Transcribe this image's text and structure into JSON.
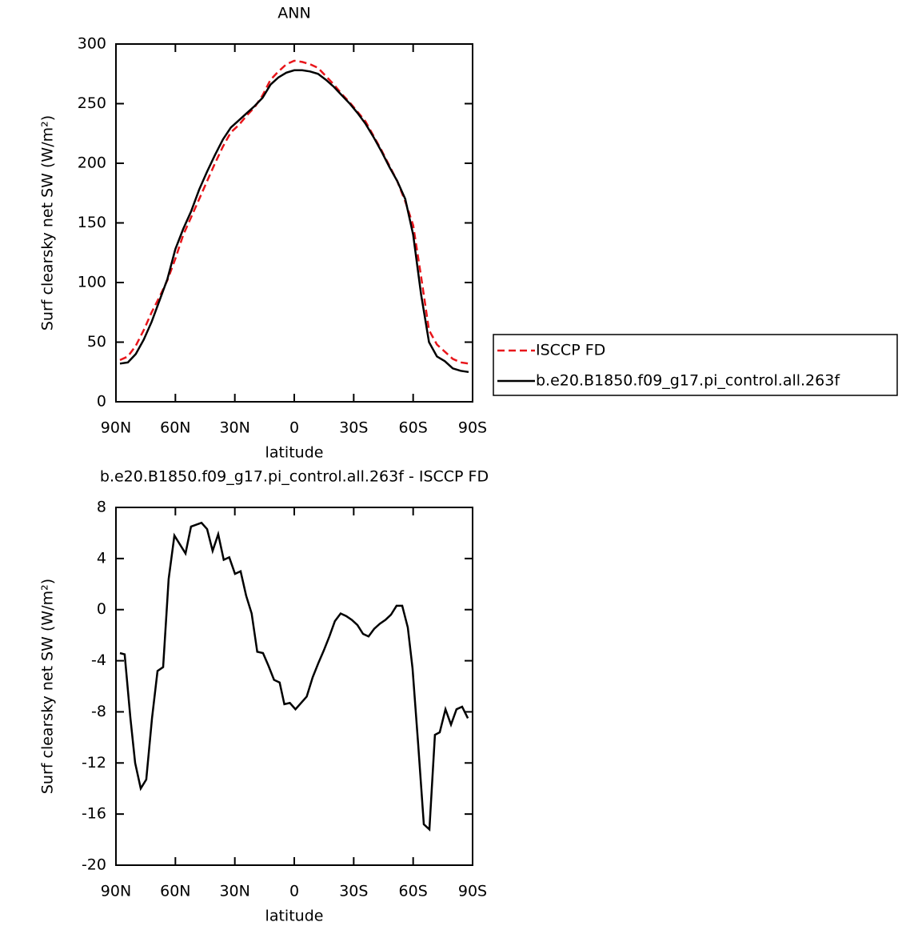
{
  "chart_data": [
    {
      "type": "line",
      "title": "ANN",
      "xlabel": "latitude",
      "ylabel": "Surf clearsky net SW (W/m²)",
      "xlim": [
        90,
        -90
      ],
      "xticks": [
        {
          "value": 90,
          "label": "90N"
        },
        {
          "value": 60,
          "label": "60N"
        },
        {
          "value": 30,
          "label": "30N"
        },
        0,
        {
          "value": -30,
          "label": "30S"
        },
        {
          "value": -60,
          "label": "60S"
        },
        {
          "value": -90,
          "label": "90S"
        }
      ],
      "ylim": [
        0,
        300
      ],
      "yticks": [
        0,
        50,
        100,
        150,
        200,
        250,
        300
      ],
      "legend": "right",
      "x": [
        88,
        84,
        80,
        76,
        72,
        68,
        64,
        60,
        56,
        52,
        48,
        44,
        40,
        36,
        32,
        28,
        24,
        20,
        16,
        12,
        8,
        4,
        0,
        -4,
        -8,
        -12,
        -16,
        -20,
        -24,
        -28,
        -32,
        -36,
        -40,
        -44,
        -48,
        -52,
        -56,
        -60,
        -64,
        -68,
        -72,
        -76,
        -80,
        -84,
        -88
      ],
      "series": [
        {
          "name": "ISCCP FD",
          "color": "#e8161b",
          "line_style": "dashed",
          "values": [
            35,
            38,
            47,
            60,
            75,
            88,
            102,
            120,
            140,
            155,
            170,
            185,
            200,
            214,
            226,
            232,
            240,
            247,
            257,
            270,
            277,
            283,
            286,
            285,
            283,
            280,
            273,
            266,
            258,
            251,
            243,
            235,
            223,
            211,
            198,
            185,
            168,
            148,
            105,
            60,
            48,
            42,
            36,
            33,
            32
          ]
        },
        {
          "name": "b.e20.B1850.f09_g17.pi_control.all.263f",
          "color": "#000000",
          "line_style": "solid",
          "values": [
            32,
            33,
            40,
            52,
            67,
            85,
            103,
            128,
            145,
            160,
            178,
            193,
            207,
            220,
            230,
            236,
            242,
            248,
            255,
            266,
            272,
            276,
            278,
            278,
            277,
            275,
            270,
            264,
            257,
            250,
            242,
            233,
            222,
            210,
            197,
            185,
            170,
            140,
            90,
            50,
            38,
            34,
            28,
            26,
            25
          ]
        }
      ]
    },
    {
      "type": "line",
      "title": "b.e20.B1850.f09_g17.pi_control.all.263f - ISCCP FD",
      "xlabel": "latitude",
      "ylabel": "Surf clearsky net SW (W/m²)",
      "xlim": [
        90,
        -90
      ],
      "xticks": [
        {
          "value": 90,
          "label": "90N"
        },
        {
          "value": 60,
          "label": "60N"
        },
        {
          "value": 30,
          "label": "30N"
        },
        0,
        {
          "value": -30,
          "label": "30S"
        },
        {
          "value": -60,
          "label": "60S"
        },
        {
          "value": -90,
          "label": "90S"
        }
      ],
      "ylim": [
        -20,
        8
      ],
      "yticks": [
        -20,
        -16,
        -12,
        -8,
        -4,
        0,
        4,
        8
      ],
      "x": [
        88.0,
        85.6,
        82.7,
        80.3,
        77.5,
        74.7,
        71.8,
        69.0,
        66.2,
        63.4,
        60.5,
        54.9,
        52.1,
        46.8,
        44.0,
        41.2,
        38.4,
        35.6,
        32.8,
        29.9,
        27.1,
        24.3,
        21.5,
        18.7,
        15.8,
        13.0,
        10.2,
        7.4,
        5.0,
        2.2,
        -0.6,
        -6.3,
        -9.3,
        -12.1,
        -14.9,
        -17.7,
        -20.5,
        -23.4,
        -26.2,
        -29.0,
        -31.9,
        -34.7,
        -37.5,
        -40.3,
        -43.2,
        -46.0,
        -48.8,
        -51.6,
        -54.5,
        -57.3,
        -59.7,
        -62.5,
        -65.4,
        -68.2,
        -71.0,
        -73.4,
        -76.3,
        -79.1,
        -81.9,
        -84.7,
        -87.6
      ],
      "series": [
        {
          "color": "#000000",
          "line_style": "solid",
          "values": [
            -3.4,
            -3.5,
            -8.5,
            -12,
            -14,
            -13.3,
            -8.5,
            -4.8,
            -4.5,
            2.4,
            5.8,
            4.4,
            6.5,
            6.8,
            6.3,
            4.6,
            5.9,
            3.9,
            4.1,
            2.8,
            3.0,
            1.1,
            -0.3,
            -3.3,
            -3.4,
            -4.4,
            -5.5,
            -5.7,
            -7.4,
            -7.3,
            -7.8,
            -6.8,
            -5.3,
            -4.2,
            -3.2,
            -2.1,
            -0.9,
            -0.3,
            -0.5,
            -0.8,
            -1.2,
            -1.9,
            -2.1,
            -1.5,
            -1.1,
            -0.8,
            -0.4,
            0.3,
            0.3,
            -1.4,
            -4.6,
            -10.5,
            -16.8,
            -17.2,
            -9.8,
            -9.6,
            -7.8,
            -9.0,
            -7.8,
            -7.6,
            -8.5
          ]
        }
      ]
    }
  ]
}
